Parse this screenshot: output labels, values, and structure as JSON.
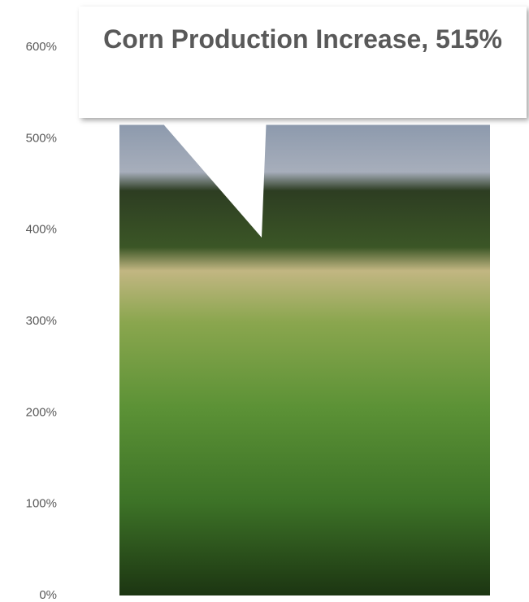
{
  "chart_data": {
    "type": "bar",
    "categories": [
      null
    ],
    "values": [
      515
    ],
    "value_labels": [
      "Corn Production Increase, 515%"
    ],
    "ylim": [
      0,
      600
    ],
    "yticks": [
      {
        "value": 0,
        "label": "0%"
      },
      {
        "value": 100,
        "label": "100%"
      },
      {
        "value": 200,
        "label": "200%"
      },
      {
        "value": 300,
        "label": "300%"
      },
      {
        "value": 400,
        "label": "400%"
      },
      {
        "value": 500,
        "label": "500%"
      },
      {
        "value": 600,
        "label": "600%"
      }
    ],
    "grid": false
  }
}
